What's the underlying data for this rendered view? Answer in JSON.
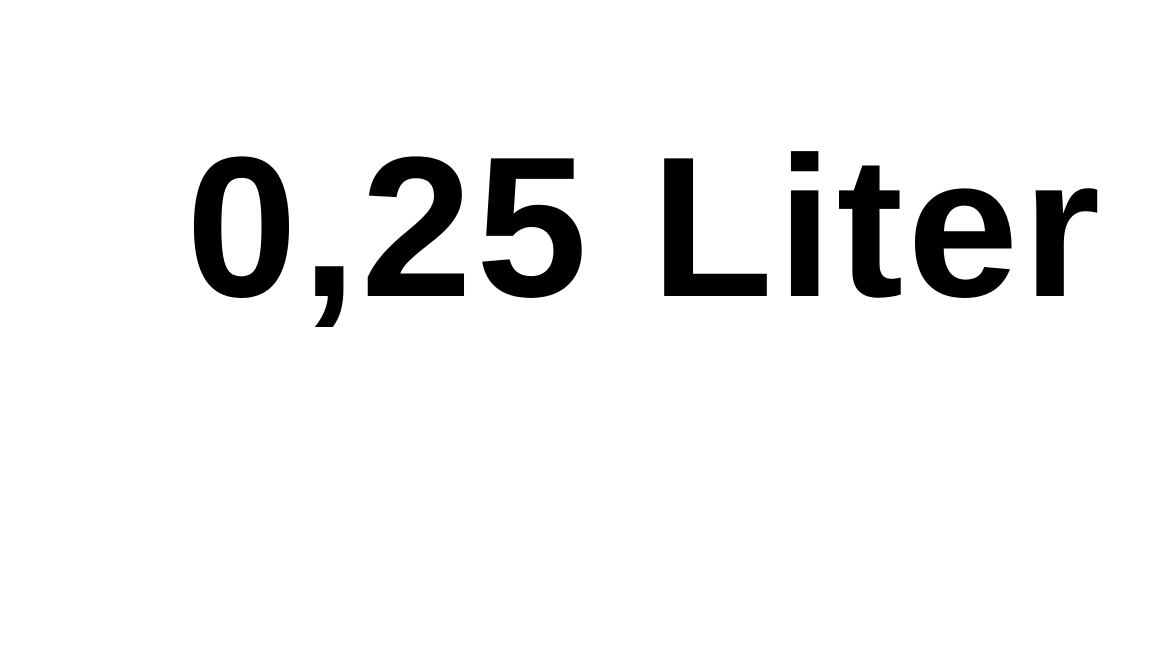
{
  "main": {
    "text": "0,25 Liter"
  },
  "colors": {
    "background": "#ffffff",
    "text": "#000000"
  }
}
